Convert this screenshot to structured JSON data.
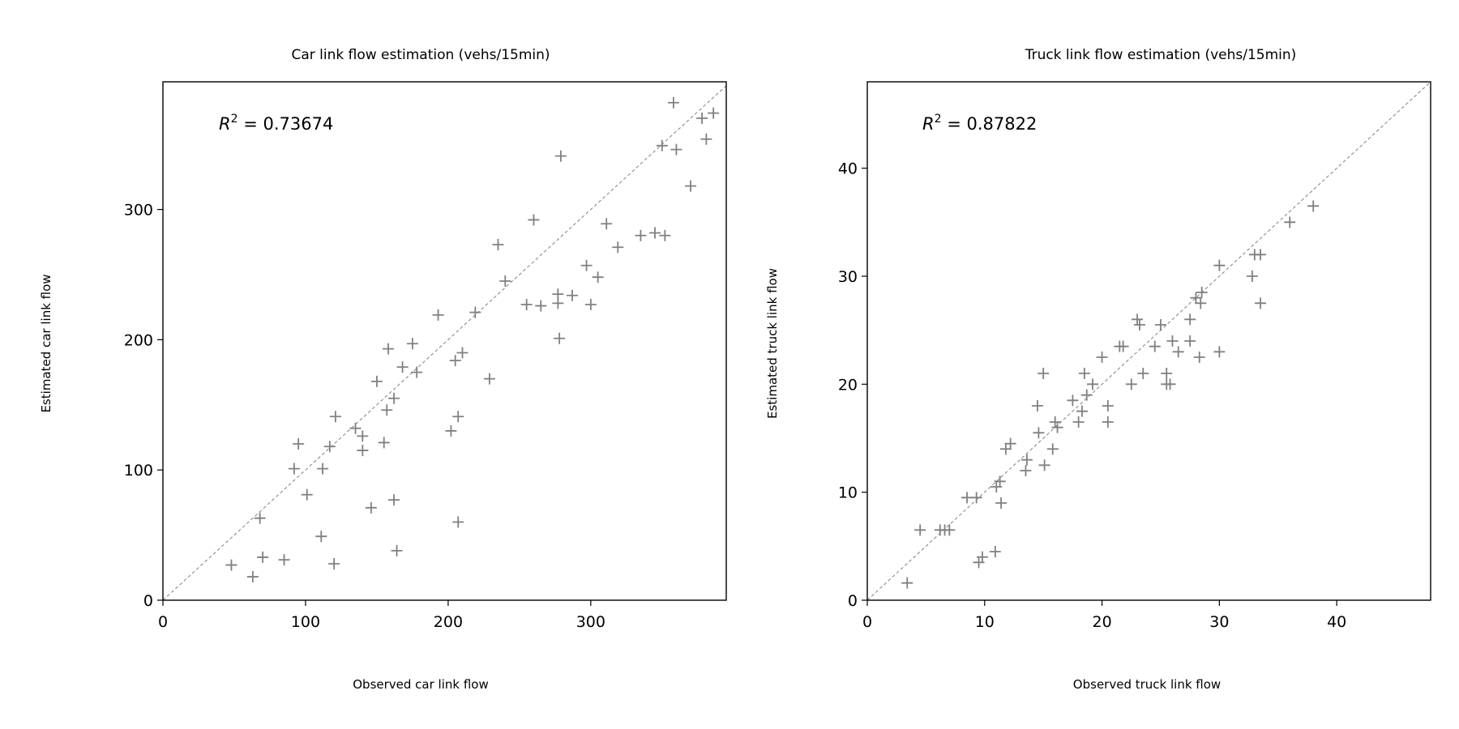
{
  "chart_data": [
    {
      "type": "scatter",
      "title": "Car link flow estimation (vehs/15min)",
      "xlabel": "Observed car link flow",
      "ylabel": "Estimated car link flow",
      "xlim": [
        0,
        395
      ],
      "ylim": [
        0,
        398
      ],
      "xticks": [
        0,
        100,
        200,
        300
      ],
      "yticks": [
        0,
        100,
        200,
        300
      ],
      "annotation": {
        "prefix": "R",
        "sup": "2",
        "text": " = 0.73674"
      },
      "reference_line": "y = x",
      "marker": "+",
      "marker_color": "#808080",
      "points": [
        [
          48,
          27
        ],
        [
          63,
          18
        ],
        [
          70,
          33
        ],
        [
          68,
          63
        ],
        [
          85,
          31
        ],
        [
          111,
          49
        ],
        [
          120,
          28
        ],
        [
          92,
          101
        ],
        [
          95,
          120
        ],
        [
          101,
          81
        ],
        [
          112,
          101
        ],
        [
          117,
          118
        ],
        [
          121,
          141
        ],
        [
          135,
          132
        ],
        [
          140,
          126
        ],
        [
          140,
          115
        ],
        [
          146,
          71
        ],
        [
          150,
          168
        ],
        [
          155,
          121
        ],
        [
          157,
          146
        ],
        [
          158,
          193
        ],
        [
          162,
          155
        ],
        [
          162,
          77
        ],
        [
          164,
          38
        ],
        [
          168,
          179
        ],
        [
          175,
          197
        ],
        [
          178,
          175
        ],
        [
          193,
          219
        ],
        [
          202,
          130
        ],
        [
          205,
          184
        ],
        [
          207,
          60
        ],
        [
          207,
          141
        ],
        [
          210,
          190
        ],
        [
          219,
          221
        ],
        [
          229,
          170
        ],
        [
          235,
          273
        ],
        [
          240,
          245
        ],
        [
          255,
          227
        ],
        [
          260,
          292
        ],
        [
          265,
          226
        ],
        [
          277,
          235
        ],
        [
          277,
          228
        ],
        [
          278,
          201
        ],
        [
          279,
          341
        ],
        [
          287,
          234
        ],
        [
          297,
          257
        ],
        [
          300,
          227
        ],
        [
          305,
          248
        ],
        [
          311,
          289
        ],
        [
          319,
          271
        ],
        [
          335,
          280
        ],
        [
          345,
          282
        ],
        [
          350,
          349
        ],
        [
          352,
          280
        ],
        [
          358,
          382
        ],
        [
          360,
          346
        ],
        [
          370,
          318
        ],
        [
          378,
          370
        ],
        [
          381,
          354
        ],
        [
          386,
          374
        ]
      ]
    },
    {
      "type": "scatter",
      "title": "Truck link flow estimation (vehs/15min)",
      "xlabel": "Observed truck link flow",
      "ylabel": "Estimated truck link flow",
      "xlim": [
        0,
        48
      ],
      "ylim": [
        0,
        48
      ],
      "xticks": [
        0,
        10,
        20,
        30,
        40
      ],
      "yticks": [
        0,
        10,
        20,
        30,
        40
      ],
      "annotation": {
        "prefix": "R",
        "sup": "2",
        "text": " = 0.87822"
      },
      "reference_line": "y = x",
      "marker": "+",
      "marker_color": "#808080",
      "points": [
        [
          3.4,
          1.6
        ],
        [
          4.5,
          6.5
        ],
        [
          6.2,
          6.5
        ],
        [
          6.6,
          6.5
        ],
        [
          7.0,
          6.5
        ],
        [
          8.5,
          9.5
        ],
        [
          9.3,
          9.5
        ],
        [
          9.5,
          3.5
        ],
        [
          9.8,
          4.0
        ],
        [
          10.9,
          4.5
        ],
        [
          11.0,
          10.5
        ],
        [
          11.3,
          11.0
        ],
        [
          11.4,
          9.0
        ],
        [
          11.8,
          14.0
        ],
        [
          12.2,
          14.5
        ],
        [
          13.5,
          12.0
        ],
        [
          13.6,
          13.0
        ],
        [
          14.5,
          18.0
        ],
        [
          14.6,
          15.5
        ],
        [
          15.0,
          21.0
        ],
        [
          15.1,
          12.5
        ],
        [
          15.8,
          14.0
        ],
        [
          16.0,
          16.5
        ],
        [
          16.2,
          16.0
        ],
        [
          17.5,
          18.5
        ],
        [
          18.0,
          16.5
        ],
        [
          18.3,
          17.5
        ],
        [
          18.5,
          21.0
        ],
        [
          18.7,
          19.0
        ],
        [
          19.2,
          20.0
        ],
        [
          20.0,
          22.5
        ],
        [
          20.5,
          18.0
        ],
        [
          20.5,
          16.5
        ],
        [
          21.5,
          23.5
        ],
        [
          21.8,
          23.5
        ],
        [
          22.5,
          20.0
        ],
        [
          23.0,
          26.0
        ],
        [
          23.2,
          25.5
        ],
        [
          23.5,
          21.0
        ],
        [
          24.5,
          23.5
        ],
        [
          25.0,
          25.5
        ],
        [
          25.5,
          21.0
        ],
        [
          25.5,
          20.0
        ],
        [
          25.8,
          20.0
        ],
        [
          26.0,
          24.0
        ],
        [
          26.5,
          23.0
        ],
        [
          27.5,
          26.0
        ],
        [
          27.5,
          24.0
        ],
        [
          28.0,
          28.0
        ],
        [
          28.3,
          22.5
        ],
        [
          28.4,
          27.5
        ],
        [
          28.5,
          28.5
        ],
        [
          30.0,
          23.0
        ],
        [
          30.0,
          31.0
        ],
        [
          32.8,
          30.0
        ],
        [
          33.0,
          32.0
        ],
        [
          33.5,
          32.0
        ],
        [
          33.5,
          27.5
        ],
        [
          36.0,
          35.0
        ],
        [
          38.0,
          36.5
        ]
      ]
    }
  ]
}
